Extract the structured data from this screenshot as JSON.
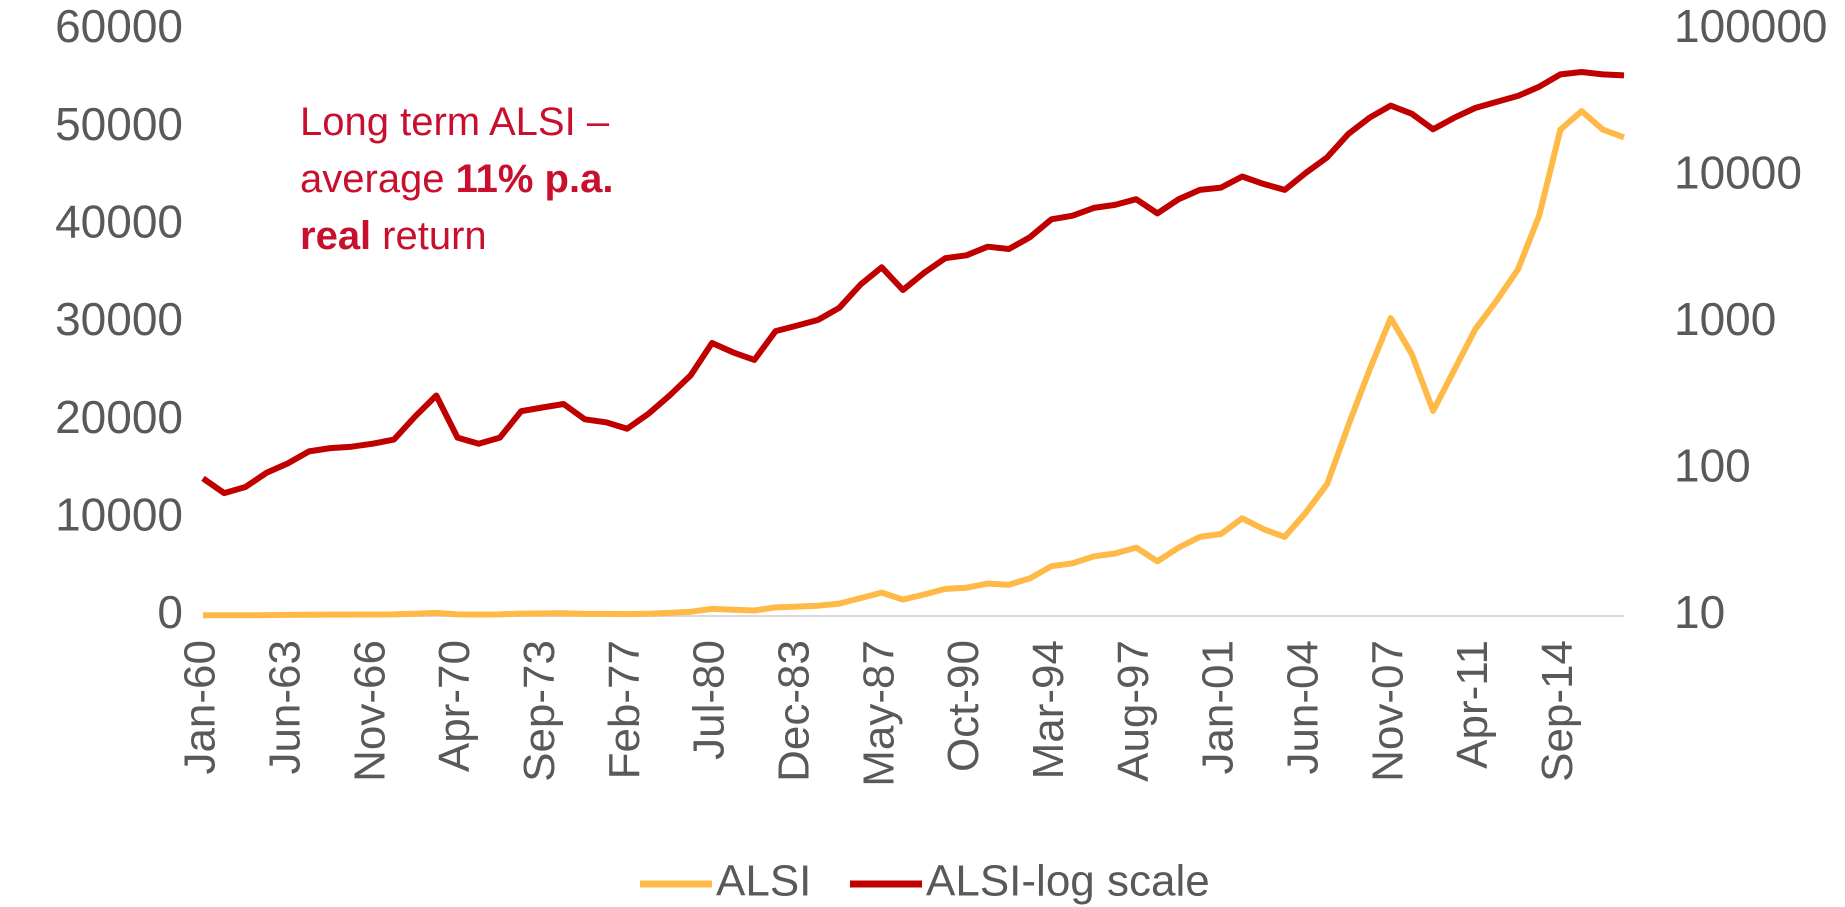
{
  "chart_data": {
    "type": "line",
    "annotation": {
      "lines": [
        [
          "Long term ALSI –"
        ],
        [
          "average",
          "11% p.a."
        ],
        [
          "real",
          "return"
        ]
      ],
      "bold": [
        [
          false
        ],
        [
          false,
          true
        ],
        [
          true,
          false
        ]
      ],
      "color": "#c8102e"
    },
    "categories": [
      "Jan-60",
      null,
      null,
      null,
      "Jun-63",
      null,
      null,
      null,
      "Nov-66",
      null,
      null,
      null,
      "Apr-70",
      null,
      null,
      null,
      "Sep-73",
      null,
      null,
      null,
      "Feb-77",
      null,
      null,
      null,
      "Jul-80",
      null,
      null,
      null,
      "Dec-83",
      null,
      null,
      null,
      "May-87",
      null,
      null,
      null,
      "Oct-90",
      null,
      null,
      null,
      "Mar-94",
      null,
      null,
      null,
      "Aug-97",
      null,
      null,
      null,
      "Jan-01",
      null,
      null,
      null,
      "Jun-04",
      null,
      null,
      null,
      "Nov-07",
      null,
      null,
      null,
      "Apr-11",
      null,
      null,
      null,
      "Sep-14",
      null,
      null,
      null
    ],
    "series": [
      {
        "name": "ALSI",
        "color": "#ffb947",
        "axis": "y",
        "values": [
          87,
          69,
          76,
          95,
          110,
          133,
          140,
          143,
          150,
          160,
          230,
          320,
          165,
          150,
          165,
          250,
          265,
          280,
          220,
          210,
          190,
          240,
          320,
          440,
          730,
          630,
          560,
          880,
          960,
          1050,
          1270,
          1830,
          2400,
          1680,
          2200,
          2770,
          2900,
          3320,
          3200,
          3860,
          5100,
          5400,
          6100,
          6400,
          7000,
          5600,
          7000,
          8100,
          8400,
          10000,
          8900,
          8100,
          10600,
          13500,
          19500,
          25200,
          30500,
          26800,
          21000,
          25200,
          29400,
          32300,
          35500,
          41000,
          49800,
          51700,
          49800,
          49000
        ]
      },
      {
        "name": "ALSI-log scale",
        "color": "#c00000",
        "axis": "y2",
        "values": [
          87,
          69,
          76,
          95,
          110,
          133,
          140,
          143,
          150,
          160,
          230,
          320,
          165,
          150,
          165,
          250,
          265,
          280,
          220,
          210,
          190,
          240,
          320,
          440,
          730,
          630,
          560,
          880,
          960,
          1050,
          1270,
          1830,
          2400,
          1680,
          2200,
          2770,
          2900,
          3320,
          3200,
          3860,
          5100,
          5400,
          6100,
          6400,
          7000,
          5600,
          7000,
          8100,
          8400,
          10000,
          8900,
          8100,
          10600,
          13500,
          19500,
          25200,
          30500,
          26800,
          21000,
          25200,
          29400,
          32300,
          35500,
          41000,
          49800,
          51700,
          49800,
          49000
        ]
      }
    ],
    "ylim": [
      0,
      60000
    ],
    "yticks": [
      0,
      10000,
      20000,
      30000,
      40000,
      50000,
      60000
    ],
    "y2lim": [
      10,
      100000
    ],
    "y2ticks": [
      10,
      100,
      1000,
      10000,
      100000
    ],
    "y2log": true,
    "grid": false,
    "legend": "bottom"
  }
}
